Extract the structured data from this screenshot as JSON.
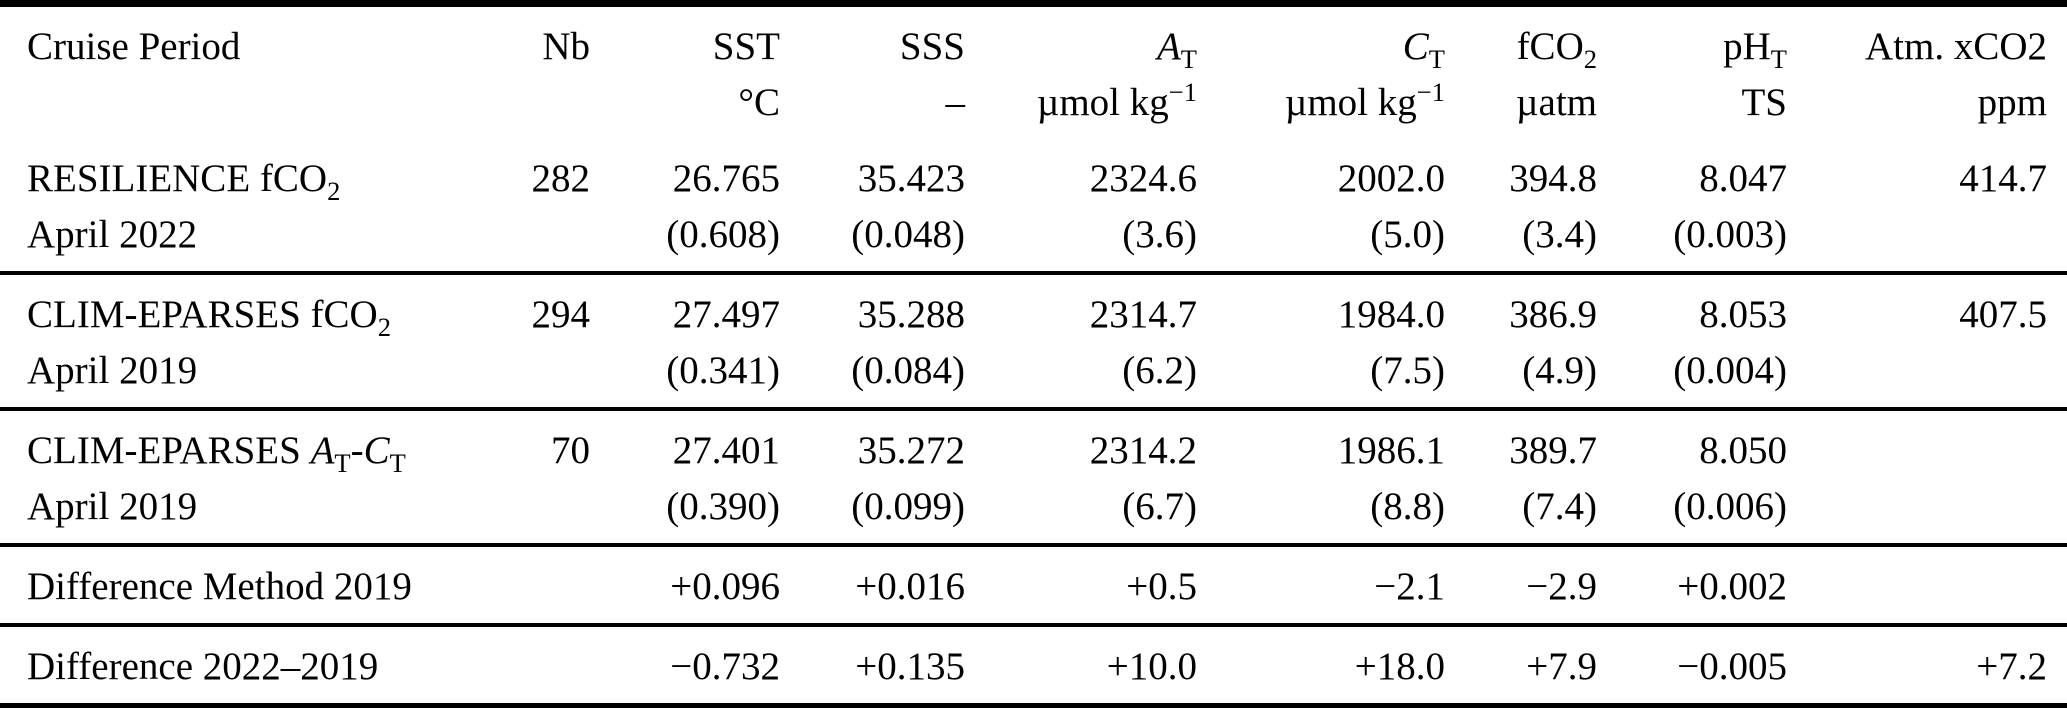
{
  "table": {
    "columns": [
      {
        "label": "Cruise Period",
        "unit": ""
      },
      {
        "label": "Nb",
        "unit": ""
      },
      {
        "label": "SST",
        "unit": "°C"
      },
      {
        "label": "SSS",
        "unit": "–"
      },
      {
        "label": "{i:A}_{T}",
        "unit": "µmol kg^{−1}"
      },
      {
        "label": "{i:C}_{T}",
        "unit": "µmol kg^{−1}"
      },
      {
        "label": "fCO_{2}",
        "unit": "µatm"
      },
      {
        "label": "pH_{T}",
        "unit": "TS"
      },
      {
        "label": "Atm. xCO2",
        "unit": "ppm"
      }
    ],
    "rows": [
      {
        "name": "RESILIENCE fCO_{2}",
        "period": "April 2022",
        "nb": "282",
        "sst": "26.765",
        "sst_sd": "(0.608)",
        "sss": "35.423",
        "sss_sd": "(0.048)",
        "at": "2324.6",
        "at_sd": "(3.6)",
        "ct": "2002.0",
        "ct_sd": "(5.0)",
        "fco2": "394.8",
        "fco2_sd": "(3.4)",
        "pht": "8.047",
        "pht_sd": "(0.003)",
        "xco2": "414.7"
      },
      {
        "name": "CLIM-EPARSES fCO_{2}",
        "period": "April 2019",
        "nb": "294",
        "sst": "27.497",
        "sst_sd": "(0.341)",
        "sss": "35.288",
        "sss_sd": "(0.084)",
        "at": "2314.7",
        "at_sd": "(6.2)",
        "ct": "1984.0",
        "ct_sd": "(7.5)",
        "fco2": "386.9",
        "fco2_sd": "(4.9)",
        "pht": "8.053",
        "pht_sd": "(0.004)",
        "xco2": "407.5"
      },
      {
        "name": "CLIM-EPARSES {i:A}_{T}-{i:C}_{T}",
        "period": "April 2019",
        "nb": "70",
        "sst": "27.401",
        "sst_sd": "(0.390)",
        "sss": "35.272",
        "sss_sd": "(0.099)",
        "at": "2314.2",
        "at_sd": "(6.7)",
        "ct": "1986.1",
        "ct_sd": "(8.8)",
        "fco2": "389.7",
        "fco2_sd": "(7.4)",
        "pht": "8.050",
        "pht_sd": "(0.006)",
        "xco2": ""
      },
      {
        "name": "Difference Method 2019",
        "period": "",
        "nb": "",
        "sst": "+0.096",
        "sst_sd": "",
        "sss": "+0.016",
        "sss_sd": "",
        "at": "+0.5",
        "at_sd": "",
        "ct": "−2.1",
        "ct_sd": "",
        "fco2": "−2.9",
        "fco2_sd": "",
        "pht": "+0.002",
        "pht_sd": "",
        "xco2": ""
      },
      {
        "name": "Difference 2022–2019",
        "period": "",
        "nb": "",
        "sst": "−0.732",
        "sst_sd": "",
        "sss": "+0.135",
        "sss_sd": "",
        "at": "+10.0",
        "at_sd": "",
        "ct": "+18.0",
        "ct_sd": "",
        "fco2": "+7.9",
        "fco2_sd": "",
        "pht": "−0.005",
        "pht_sd": "",
        "xco2": "+7.2"
      }
    ]
  }
}
